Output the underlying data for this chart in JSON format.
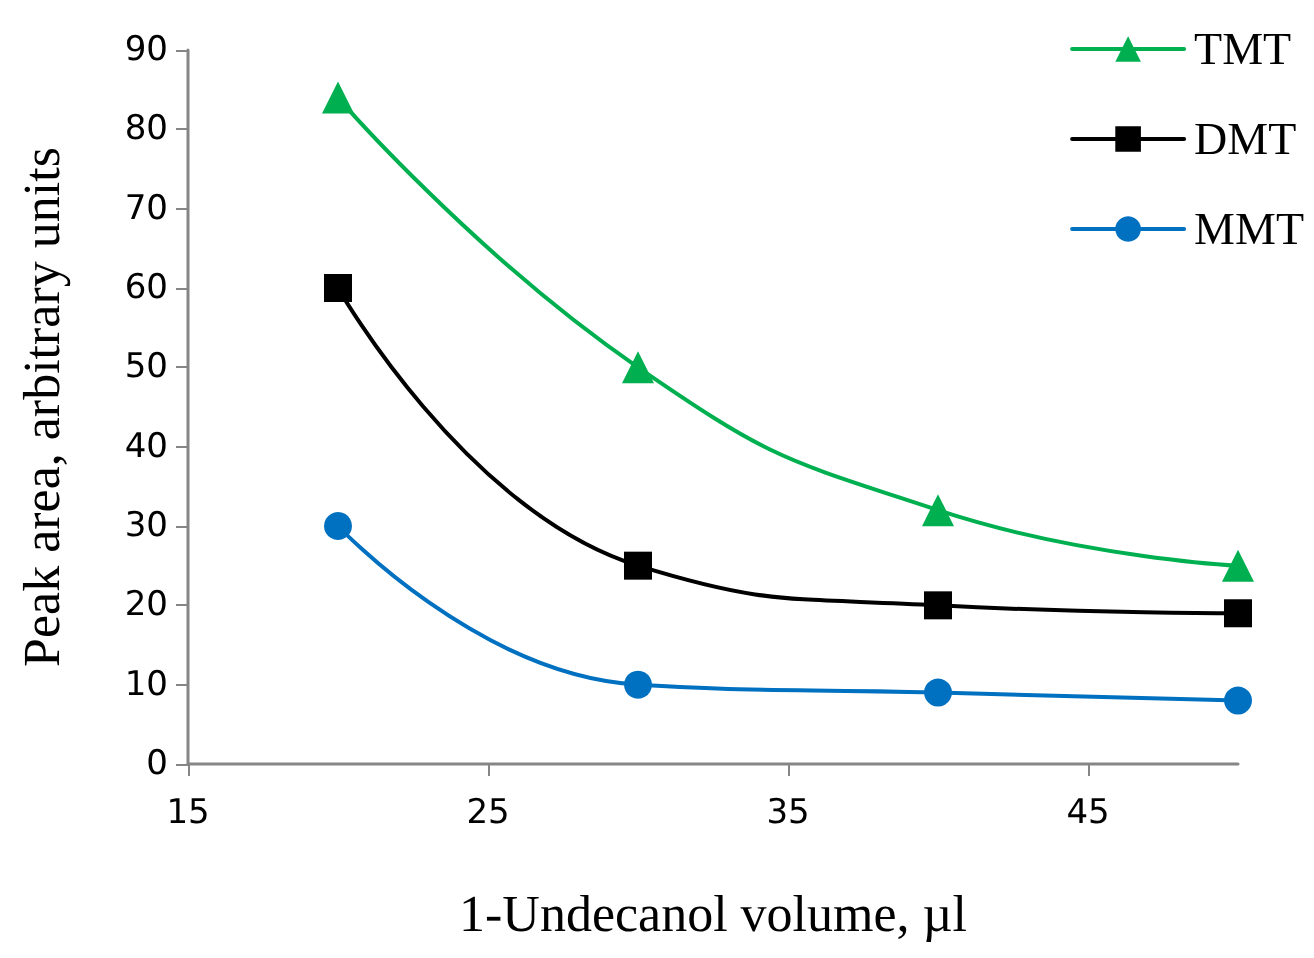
{
  "chart_data": {
    "type": "line",
    "xlabel": "1-Undecanol volume, µl",
    "ylabel": "Peak area, arbitrary units",
    "x": [
      20,
      30,
      40,
      50
    ],
    "series": [
      {
        "name": "TMT",
        "color": "#00b050",
        "marker": "triangle",
        "values": [
          84,
          50,
          32,
          25
        ]
      },
      {
        "name": "DMT",
        "color": "#000000",
        "marker": "square",
        "values": [
          60,
          25,
          20,
          19
        ]
      },
      {
        "name": "MMT",
        "color": "#0070c0",
        "marker": "circle",
        "values": [
          30,
          10,
          9,
          8
        ]
      }
    ],
    "xlim": [
      15,
      50
    ],
    "xticks": [
      15,
      25,
      35,
      45
    ],
    "ylim": [
      0,
      90
    ],
    "yticks": [
      0,
      10,
      20,
      30,
      40,
      50,
      60,
      70,
      80,
      90
    ],
    "grid": false,
    "legend": "top right",
    "line_style": "solid"
  }
}
